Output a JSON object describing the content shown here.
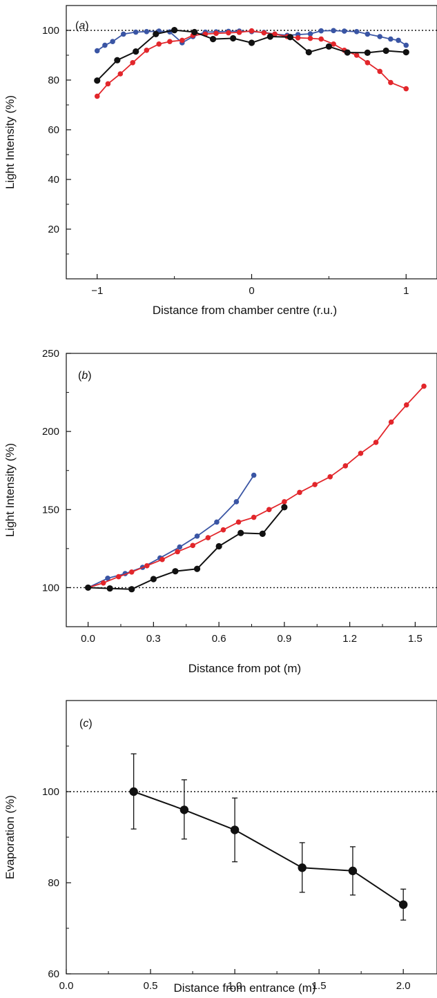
{
  "colors": {
    "blue": "#3a55a4",
    "red": "#e2262b",
    "black": "#111111",
    "ref_line": "#111111"
  },
  "chart_data": [
    {
      "id": "a",
      "type": "line",
      "panel_label": "(a)",
      "panel_letter": "a",
      "xlabel": "Distance from chamber centre (r.u.)",
      "ylabel": "Light Intensity (%)",
      "xlim": [
        -1.2,
        1.2
      ],
      "ylim": [
        0,
        110
      ],
      "xticks": [
        -1,
        0,
        1
      ],
      "xtick_labels": [
        "−1",
        "0",
        "1"
      ],
      "yticks": [
        20,
        40,
        60,
        80,
        100
      ],
      "ytick_labels": [
        "20",
        "40",
        "60",
        "80",
        "100"
      ],
      "y_minor_ticks": [
        10,
        30,
        50,
        70,
        90
      ],
      "x_minor_ticks": [
        -0.5,
        0.5
      ],
      "reference_line": 100,
      "series": [
        {
          "color": "blue",
          "x": [
            -1.0,
            -0.95,
            -0.9,
            -0.83,
            -0.75,
            -0.68,
            -0.6,
            -0.53,
            -0.45,
            -0.38,
            -0.3,
            -0.23,
            -0.15,
            -0.08,
            0.0,
            0.08,
            0.15,
            0.23,
            0.3,
            0.38,
            0.45,
            0.53,
            0.6,
            0.68,
            0.75,
            0.83,
            0.9,
            0.95,
            1.0
          ],
          "y": [
            91.8,
            94,
            95.5,
            98.5,
            99.3,
            99.5,
            99.7,
            99.4,
            95,
            97.5,
            99.3,
            99.4,
            99.6,
            99.7,
            99.5,
            99.2,
            98.5,
            98,
            98.3,
            98.6,
            99.8,
            99.9,
            99.7,
            99.5,
            98.5,
            97.5,
            96.5,
            96,
            94
          ]
        },
        {
          "color": "red",
          "x": [
            -1.0,
            -0.93,
            -0.85,
            -0.77,
            -0.68,
            -0.6,
            -0.53,
            -0.45,
            -0.38,
            -0.3,
            -0.23,
            -0.15,
            -0.08,
            0.0,
            0.08,
            0.15,
            0.23,
            0.3,
            0.38,
            0.45,
            0.53,
            0.6,
            0.68,
            0.75,
            0.83,
            0.9,
            1.0
          ],
          "y": [
            73.5,
            78.5,
            82.5,
            87,
            92,
            94.5,
            95.5,
            96,
            98,
            98.5,
            98.8,
            99,
            99.2,
            99.8,
            99,
            98.5,
            97.5,
            97,
            96.8,
            96.5,
            94.5,
            92,
            90,
            87,
            83.5,
            79,
            76.5
          ]
        },
        {
          "color": "black",
          "x": [
            -1.0,
            -0.87,
            -0.75,
            -0.62,
            -0.5,
            -0.37,
            -0.25,
            -0.12,
            0.0,
            0.12,
            0.25,
            0.37,
            0.5,
            0.62,
            0.75,
            0.87,
            1.0
          ],
          "y": [
            79.8,
            88,
            91.5,
            98.5,
            100.1,
            99.3,
            96.5,
            96.8,
            95,
            97.5,
            97.3,
            91.2,
            93.5,
            91.1,
            91,
            91.8,
            91.2
          ]
        }
      ]
    },
    {
      "id": "b",
      "type": "line",
      "panel_label": "(b)",
      "panel_letter": "b",
      "xlabel": "Distance from pot (m)",
      "ylabel": "Light Intensity (%)",
      "xlim": [
        -0.1,
        1.6
      ],
      "ylim": [
        75,
        250
      ],
      "xticks": [
        0,
        0.3,
        0.6,
        0.9,
        1.2,
        1.5
      ],
      "xtick_labels": [
        "0.0",
        "0.3",
        "0.6",
        "0.9",
        "1.2",
        "1.5"
      ],
      "x_minor_ticks": [
        0.15,
        0.45,
        0.75,
        1.05,
        1.35
      ],
      "yticks": [
        100,
        150,
        200,
        250
      ],
      "ytick_labels": [
        "100",
        "150",
        "200",
        "250"
      ],
      "y_minor_ticks": [
        125,
        175,
        225
      ],
      "reference_line": 100,
      "series": [
        {
          "color": "blue",
          "x": [
            0.0,
            0.09,
            0.17,
            0.25,
            0.33,
            0.42,
            0.5,
            0.59,
            0.68,
            0.76
          ],
          "y": [
            100,
            106,
            109,
            113,
            119,
            126,
            133,
            142,
            155,
            172
          ]
        },
        {
          "color": "red",
          "x": [
            0.0,
            0.07,
            0.14,
            0.2,
            0.27,
            0.34,
            0.41,
            0.48,
            0.55,
            0.62,
            0.69,
            0.76,
            0.83,
            0.9,
            0.97,
            1.04,
            1.11,
            1.18,
            1.25,
            1.32,
            1.39,
            1.46,
            1.54
          ],
          "y": [
            100,
            103,
            107,
            110,
            114,
            118,
            123,
            127,
            132,
            137,
            142,
            145,
            150,
            155,
            161,
            166,
            171,
            178,
            186,
            193,
            206,
            217,
            229
          ]
        },
        {
          "color": "black",
          "x": [
            0.0,
            0.1,
            0.2,
            0.3,
            0.4,
            0.5,
            0.6,
            0.7,
            0.8,
            0.9
          ],
          "y": [
            100,
            99.5,
            99,
            105.5,
            110.5,
            112,
            126.5,
            135,
            134.5,
            151.5
          ]
        }
      ]
    },
    {
      "id": "c",
      "type": "line",
      "panel_label": "(c)",
      "panel_letter": "c",
      "xlabel": "Distance from entrance (m)",
      "ylabel": "Evaporation (%)",
      "xlim": [
        0.0,
        2.2
      ],
      "ylim": [
        60,
        120
      ],
      "xticks": [
        0.0,
        0.5,
        1.0,
        1.5,
        2.0
      ],
      "xtick_labels": [
        "0.0",
        "0.5",
        "1.0",
        "1.5",
        "2.0"
      ],
      "x_minor_ticks": [
        0.25,
        0.75,
        1.25,
        1.75
      ],
      "yticks": [
        60,
        80,
        100
      ],
      "ytick_labels": [
        "60",
        "80",
        "100"
      ],
      "y_minor_ticks": [
        70,
        90,
        110
      ],
      "reference_line": 100,
      "series": [
        {
          "color": "black",
          "x": [
            0.4,
            0.7,
            1.0,
            1.4,
            1.7,
            2.0
          ],
          "y": [
            100.0,
            96.0,
            91.6,
            83.3,
            82.6,
            75.2
          ],
          "err_low": [
            91.8,
            89.6,
            84.6,
            77.9,
            77.3,
            71.8
          ],
          "err_high": [
            108.3,
            102.6,
            98.6,
            88.8,
            87.9,
            78.6
          ]
        }
      ]
    }
  ]
}
